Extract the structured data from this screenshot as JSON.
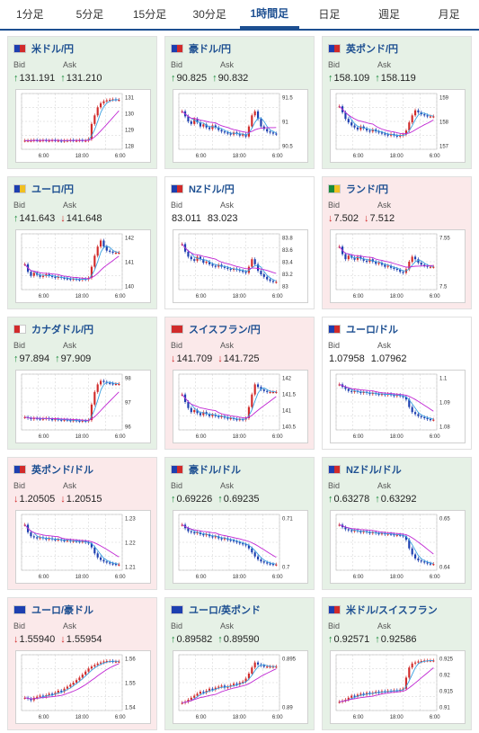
{
  "tabs": [
    {
      "label": "1分足",
      "active": false
    },
    {
      "label": "5分足",
      "active": false
    },
    {
      "label": "15分足",
      "active": false
    },
    {
      "label": "30分足",
      "active": false
    },
    {
      "label": "1時間足",
      "active": true
    },
    {
      "label": "日足",
      "active": false
    },
    {
      "label": "週足",
      "active": false
    },
    {
      "label": "月足",
      "active": false
    }
  ],
  "bid_label": "Bid",
  "ask_label": "Ask",
  "x_ticks": [
    "6:00",
    "18:00",
    "6:00"
  ],
  "colors": {
    "up_arrow": "#1a8a3a",
    "down_arrow": "#d12b2b",
    "up_card": "#e6f1e6",
    "down_card": "#fbe9ea",
    "accent": "#1d4f91",
    "candle_up": "#d12b2b",
    "candle_down": "#1d3fb0",
    "ma_fast": "#3aa0e0",
    "ma_slow": "#c026d3"
  },
  "cards": [
    {
      "pair": "米ドル/円",
      "status": "up",
      "flag": [
        "#1d3fb0",
        "#d12b2b"
      ],
      "bid": "131.191",
      "bid_dir": "up",
      "ask": "131.210",
      "ask_dir": "up",
      "y_ticks": [
        "131",
        "130",
        "129",
        "128"
      ],
      "shape": [
        0.12,
        0.12,
        0.12,
        0.13,
        0.12,
        0.12,
        0.13,
        0.12,
        0.12,
        0.13,
        0.12,
        0.12,
        0.11,
        0.12,
        0.12,
        0.13,
        0.12,
        0.12,
        0.13,
        0.12,
        0.12,
        0.15,
        0.45,
        0.62,
        0.78,
        0.86,
        0.9,
        0.92,
        0.93,
        0.94,
        0.93,
        0.93
      ]
    },
    {
      "pair": "豪ドル/円",
      "status": "up",
      "flag": [
        "#1d3fb0",
        "#d12b2b"
      ],
      "bid": "90.825",
      "bid_dir": "up",
      "ask": "90.832",
      "ask_dir": "up",
      "y_ticks": [
        "91.5",
        "91",
        "90.5"
      ],
      "shape": [
        0.7,
        0.6,
        0.5,
        0.45,
        0.55,
        0.48,
        0.4,
        0.44,
        0.38,
        0.35,
        0.42,
        0.38,
        0.33,
        0.3,
        0.28,
        0.26,
        0.24,
        0.28,
        0.26,
        0.22,
        0.24,
        0.2,
        0.4,
        0.62,
        0.7,
        0.55,
        0.4,
        0.35,
        0.3,
        0.28,
        0.26,
        0.25
      ]
    },
    {
      "pair": "英ポンド/円",
      "status": "up",
      "flag": [
        "#1d3fb0",
        "#d12b2b"
      ],
      "bid": "158.109",
      "bid_dir": "up",
      "ask": "158.119",
      "ask_dir": "up",
      "y_ticks": [
        "159",
        "158",
        "157"
      ],
      "shape": [
        0.8,
        0.68,
        0.55,
        0.48,
        0.42,
        0.38,
        0.34,
        0.4,
        0.36,
        0.32,
        0.3,
        0.34,
        0.3,
        0.28,
        0.26,
        0.24,
        0.22,
        0.25,
        0.22,
        0.2,
        0.22,
        0.24,
        0.32,
        0.48,
        0.62,
        0.72,
        0.68,
        0.64,
        0.62,
        0.6,
        0.6,
        0.6
      ]
    },
    {
      "pair": "ユーロ/円",
      "status": "up",
      "flag": [
        "#1d3fb0",
        "#f0c020"
      ],
      "bid": "141.643",
      "bid_dir": "up",
      "ask": "141.648",
      "ask_dir": "down",
      "y_ticks": [
        "142",
        "141",
        "140"
      ],
      "shape": [
        0.45,
        0.3,
        0.22,
        0.28,
        0.24,
        0.2,
        0.22,
        0.25,
        0.22,
        0.2,
        0.18,
        0.2,
        0.18,
        0.17,
        0.16,
        0.15,
        0.16,
        0.15,
        0.14,
        0.16,
        0.15,
        0.18,
        0.4,
        0.62,
        0.8,
        0.92,
        0.8,
        0.72,
        0.7,
        0.68,
        0.68,
        0.68
      ]
    },
    {
      "pair": "NZドル/円",
      "status": "flat",
      "flag": [
        "#1d3fb0",
        "#d12b2b"
      ],
      "bid": "83.011",
      "bid_dir": "none",
      "ask": "83.023",
      "ask_dir": "none",
      "y_ticks": [
        "83.8",
        "83.6",
        "83.4",
        "83.2",
        "83"
      ],
      "shape": [
        0.85,
        0.7,
        0.6,
        0.55,
        0.52,
        0.6,
        0.55,
        0.48,
        0.5,
        0.45,
        0.42,
        0.4,
        0.44,
        0.4,
        0.38,
        0.36,
        0.34,
        0.36,
        0.34,
        0.32,
        0.3,
        0.28,
        0.4,
        0.55,
        0.45,
        0.32,
        0.25,
        0.2,
        0.15,
        0.12,
        0.1,
        0.1
      ]
    },
    {
      "pair": "ランド/円",
      "status": "down",
      "flag": [
        "#1a8a3a",
        "#f0c020"
      ],
      "bid": "7.502",
      "bid_dir": "down",
      "ask": "7.512",
      "ask_dir": "down",
      "y_ticks": [
        "7.55",
        "7.5"
      ],
      "shape": [
        0.8,
        0.65,
        0.55,
        0.62,
        0.58,
        0.54,
        0.6,
        0.56,
        0.52,
        0.5,
        0.55,
        0.5,
        0.46,
        0.48,
        0.44,
        0.4,
        0.42,
        0.38,
        0.36,
        0.34,
        0.3,
        0.28,
        0.35,
        0.5,
        0.6,
        0.55,
        0.48,
        0.44,
        0.42,
        0.4,
        0.4,
        0.4
      ]
    },
    {
      "pair": "カナダドル/円",
      "status": "up",
      "flag": [
        "#d12b2b",
        "#ffffff"
      ],
      "bid": "97.894",
      "bid_dir": "up",
      "ask": "97.909",
      "ask_dir": "up",
      "y_ticks": [
        "98",
        "97",
        "96"
      ],
      "shape": [
        0.2,
        0.18,
        0.16,
        0.18,
        0.17,
        0.16,
        0.17,
        0.18,
        0.16,
        0.15,
        0.16,
        0.15,
        0.14,
        0.15,
        0.14,
        0.13,
        0.14,
        0.13,
        0.12,
        0.13,
        0.12,
        0.14,
        0.45,
        0.7,
        0.85,
        0.92,
        0.9,
        0.88,
        0.87,
        0.86,
        0.86,
        0.86
      ]
    },
    {
      "pair": "スイスフラン/円",
      "status": "down",
      "flag": [
        "#d12b2b",
        "#d12b2b"
      ],
      "bid": "141.709",
      "bid_dir": "down",
      "ask": "141.725",
      "ask_dir": "down",
      "y_ticks": [
        "142",
        "141.5",
        "141",
        "140.5"
      ],
      "shape": [
        0.65,
        0.5,
        0.38,
        0.3,
        0.34,
        0.28,
        0.24,
        0.3,
        0.26,
        0.22,
        0.25,
        0.22,
        0.2,
        0.22,
        0.19,
        0.17,
        0.18,
        0.16,
        0.15,
        0.16,
        0.15,
        0.18,
        0.4,
        0.65,
        0.85,
        0.8,
        0.75,
        0.72,
        0.7,
        0.7,
        0.7,
        0.7
      ]
    },
    {
      "pair": "ユーロ/ドル",
      "status": "flat",
      "flag": [
        "#1d3fb0",
        "#d12b2b"
      ],
      "bid": "1.07958",
      "bid_dir": "none",
      "ask": "1.07962",
      "ask_dir": "none",
      "y_ticks": [
        "1.1",
        "1.09",
        "1.08"
      ],
      "shape": [
        0.85,
        0.8,
        0.76,
        0.72,
        0.7,
        0.72,
        0.7,
        0.68,
        0.7,
        0.68,
        0.66,
        0.68,
        0.66,
        0.65,
        0.66,
        0.64,
        0.66,
        0.64,
        0.62,
        0.64,
        0.62,
        0.6,
        0.55,
        0.4,
        0.3,
        0.26,
        0.22,
        0.2,
        0.18,
        0.16,
        0.15,
        0.15
      ]
    },
    {
      "pair": "英ポンド/ドル",
      "status": "down",
      "flag": [
        "#1d3fb0",
        "#d12b2b"
      ],
      "bid": "1.20505",
      "bid_dir": "down",
      "ask": "1.20515",
      "ask_dir": "down",
      "y_ticks": [
        "1.23",
        "1.22",
        "1.21"
      ],
      "shape": [
        0.85,
        0.7,
        0.62,
        0.6,
        0.58,
        0.6,
        0.58,
        0.56,
        0.58,
        0.56,
        0.55,
        0.56,
        0.54,
        0.53,
        0.54,
        0.52,
        0.53,
        0.52,
        0.51,
        0.52,
        0.5,
        0.48,
        0.4,
        0.28,
        0.2,
        0.15,
        0.12,
        0.1,
        0.08,
        0.07,
        0.06,
        0.06
      ]
    },
    {
      "pair": "豪ドル/ドル",
      "status": "up",
      "flag": [
        "#1d3fb0",
        "#d12b2b"
      ],
      "bid": "0.69226",
      "bid_dir": "up",
      "ask": "0.69235",
      "ask_dir": "up",
      "y_ticks": [
        "0.71",
        "0.7"
      ],
      "shape": [
        0.85,
        0.78,
        0.72,
        0.7,
        0.68,
        0.7,
        0.66,
        0.64,
        0.66,
        0.62,
        0.6,
        0.62,
        0.58,
        0.56,
        0.58,
        0.55,
        0.54,
        0.52,
        0.5,
        0.48,
        0.46,
        0.44,
        0.38,
        0.3,
        0.22,
        0.16,
        0.12,
        0.1,
        0.08,
        0.07,
        0.06,
        0.06
      ]
    },
    {
      "pair": "NZドル/ドル",
      "status": "up",
      "flag": [
        "#1d3fb0",
        "#d12b2b"
      ],
      "bid": "0.63278",
      "bid_dir": "up",
      "ask": "0.63292",
      "ask_dir": "up",
      "y_ticks": [
        "0.65",
        "0.64"
      ],
      "shape": [
        0.85,
        0.8,
        0.76,
        0.74,
        0.72,
        0.74,
        0.72,
        0.7,
        0.72,
        0.7,
        0.68,
        0.7,
        0.68,
        0.67,
        0.68,
        0.66,
        0.67,
        0.66,
        0.64,
        0.65,
        0.64,
        0.62,
        0.55,
        0.38,
        0.26,
        0.18,
        0.14,
        0.12,
        0.1,
        0.08,
        0.07,
        0.07
      ]
    },
    {
      "pair": "ユーロ/豪ドル",
      "status": "down",
      "flag": [
        "#1d3fb0",
        "#1d3fb0"
      ],
      "bid": "1.55940",
      "bid_dir": "down",
      "ask": "1.55954",
      "ask_dir": "down",
      "y_ticks": [
        "1.56",
        "1.55",
        "1.54"
      ],
      "shape": [
        0.2,
        0.18,
        0.15,
        0.2,
        0.22,
        0.24,
        0.22,
        0.25,
        0.28,
        0.26,
        0.3,
        0.34,
        0.32,
        0.38,
        0.42,
        0.46,
        0.5,
        0.55,
        0.6,
        0.66,
        0.72,
        0.78,
        0.82,
        0.85,
        0.88,
        0.9,
        0.92,
        0.93,
        0.93,
        0.92,
        0.92,
        0.92
      ]
    },
    {
      "pair": "ユーロ/英ポンド",
      "status": "up",
      "flag": [
        "#1d3fb0",
        "#1d3fb0"
      ],
      "bid": "0.89582",
      "bid_dir": "up",
      "ask": "0.89590",
      "ask_dir": "up",
      "y_ticks": [
        "0.895",
        "0.89"
      ],
      "shape": [
        0.1,
        0.12,
        0.16,
        0.2,
        0.24,
        0.28,
        0.32,
        0.3,
        0.34,
        0.38,
        0.36,
        0.4,
        0.42,
        0.44,
        0.4,
        0.42,
        0.45,
        0.48,
        0.46,
        0.5,
        0.52,
        0.58,
        0.68,
        0.8,
        0.9,
        0.86,
        0.84,
        0.82,
        0.82,
        0.82,
        0.82,
        0.82
      ]
    },
    {
      "pair": "米ドル/スイスフラン",
      "status": "up",
      "flag": [
        "#1d3fb0",
        "#d12b2b"
      ],
      "bid": "0.92571",
      "bid_dir": "up",
      "ask": "0.92586",
      "ask_dir": "up",
      "y_ticks": [
        "0.925",
        "0.92",
        "0.915",
        "0.91"
      ],
      "shape": [
        0.12,
        0.14,
        0.16,
        0.2,
        0.24,
        0.22,
        0.26,
        0.28,
        0.26,
        0.3,
        0.28,
        0.3,
        0.32,
        0.3,
        0.33,
        0.32,
        0.34,
        0.33,
        0.35,
        0.34,
        0.36,
        0.38,
        0.6,
        0.8,
        0.88,
        0.9,
        0.92,
        0.93,
        0.94,
        0.94,
        0.94,
        0.94
      ]
    }
  ]
}
